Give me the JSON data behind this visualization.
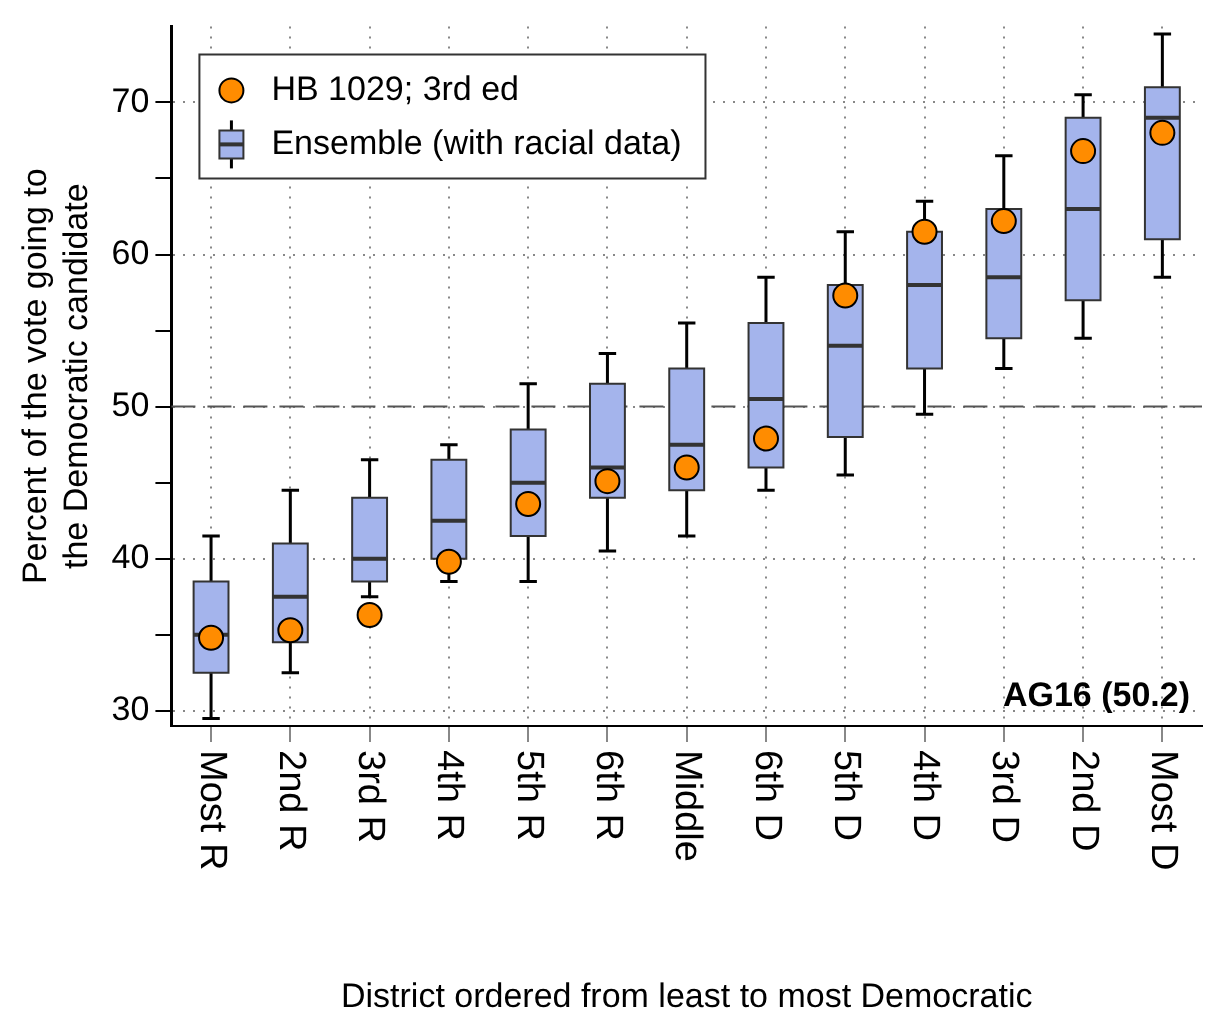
{
  "chart_data": {
    "type": "box",
    "xlabel": "District ordered from least to most Democratic",
    "ylabel": "Percent of the vote going to\nthe Democratic candidate",
    "categories": [
      "Most R",
      "2nd R",
      "3rd R",
      "4th R",
      "5th R",
      "6th R",
      "Middle",
      "6th D",
      "5th D",
      "4th D",
      "3rd D",
      "2nd D",
      "Most D"
    ],
    "ylim": [
      29,
      75
    ],
    "yticks": [
      30,
      {
        "value": 35,
        "label": null
      },
      40,
      {
        "value": 45,
        "label": null
      },
      50,
      {
        "value": 55,
        "label": null
      },
      60,
      {
        "value": 65,
        "label": null
      },
      70
    ],
    "grid": true,
    "legend": "top left",
    "marker": "circle",
    "ref_lines": [
      {
        "axis": "y",
        "value": 50,
        "label": null,
        "color": "#555555",
        "line_style": "dashed"
      }
    ],
    "annotations": [
      "AG16 (50.2)"
    ],
    "series": [
      {
        "name": "HB 1029; 3rd ed",
        "type": "scatter",
        "color": "#ff8c00",
        "values": [
          34.8,
          35.3,
          36.3,
          39.8,
          43.6,
          45.1,
          46.0,
          47.9,
          57.3,
          61.5,
          62.2,
          66.8,
          68.0
        ]
      },
      {
        "name": "Ensemble (with racial data)",
        "color": "#a4b4ec",
        "boxes": [
          {
            "low": 29.5,
            "q1": 32.5,
            "median": 35,
            "q3": 38.5,
            "high": 41.5
          },
          {
            "low": 32.5,
            "q1": 34.5,
            "median": 37.5,
            "q3": 41,
            "high": 44.5
          },
          {
            "low": 37.5,
            "q1": 38.5,
            "median": 40,
            "q3": 44,
            "high": 46.5
          },
          {
            "low": 38.5,
            "q1": 40,
            "median": 42.5,
            "q3": 46.5,
            "high": 47.5
          },
          {
            "low": 38.5,
            "q1": 41.5,
            "median": 45,
            "q3": 48.5,
            "high": 51.5
          },
          {
            "low": 40.5,
            "q1": 44,
            "median": 46,
            "q3": 51.5,
            "high": 53.5
          },
          {
            "low": 41.5,
            "q1": 44.5,
            "median": 47.5,
            "q3": 52.5,
            "high": 55.5
          },
          {
            "low": 44.5,
            "q1": 46,
            "median": 50.5,
            "q3": 55.5,
            "high": 58.5
          },
          {
            "low": 45.5,
            "q1": 48,
            "median": 54,
            "q3": 58,
            "high": 61.5
          },
          {
            "low": 49.5,
            "q1": 52.5,
            "median": 58,
            "q3": 61.5,
            "high": 63.5
          },
          {
            "low": 52.5,
            "q1": 54.5,
            "median": 58.5,
            "q3": 63,
            "high": 66.5
          },
          {
            "low": 54.5,
            "q1": 57,
            "median": 63,
            "q3": 69,
            "high": 70.5
          },
          {
            "low": 58.5,
            "q1": 61,
            "median": 69,
            "q3": 71,
            "high": 74.5
          }
        ]
      }
    ]
  }
}
